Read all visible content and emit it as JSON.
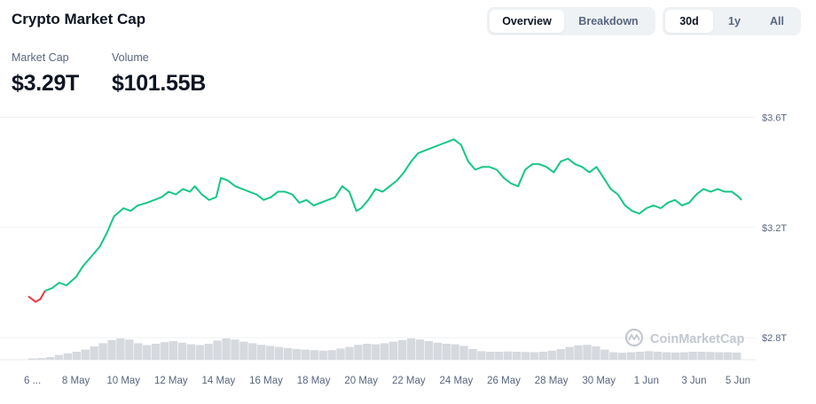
{
  "header": {
    "title": "Crypto Market Cap",
    "view_tabs": [
      {
        "label": "Overview",
        "active": true
      },
      {
        "label": "Breakdown",
        "active": false
      }
    ],
    "range_tabs": [
      {
        "label": "30d",
        "active": true
      },
      {
        "label": "1y",
        "active": false
      },
      {
        "label": "All",
        "active": false
      }
    ]
  },
  "stats": {
    "market_cap": {
      "label": "Market Cap",
      "value": "$3.29T"
    },
    "volume": {
      "label": "Volume",
      "value": "$101.55B"
    }
  },
  "watermark": "CoinMarketCap",
  "colors": {
    "up": "#16c784",
    "down": "#ea3943",
    "volume": "#d6d9de",
    "grid": "#eff2f5"
  },
  "chart_data": {
    "type": "line",
    "ylim": [
      2.72,
      3.64
    ],
    "ylabel_unit": "T",
    "y_ticks": [
      "$3.6T",
      "$3.2T",
      "$2.8T"
    ],
    "y_tick_values": [
      3.6,
      3.2,
      2.8
    ],
    "x_ticks": [
      "6 ...",
      "8 May",
      "10 May",
      "12 May",
      "14 May",
      "16 May",
      "18 May",
      "20 May",
      "22 May",
      "24 May",
      "26 May",
      "28 May",
      "30 May",
      "1 Jun",
      "3 Jun",
      "5 Jun"
    ],
    "x_tick_days": [
      0,
      2,
      4,
      6,
      8,
      10,
      12,
      14,
      16,
      18,
      20,
      22,
      24,
      26,
      28,
      30
    ],
    "grid": true,
    "series": [
      {
        "color_start": "#ea3943",
        "color": "#16c784",
        "points": [
          [
            0.0,
            2.95
          ],
          [
            0.3,
            2.93
          ],
          [
            0.5,
            2.94
          ],
          [
            0.7,
            2.97
          ],
          [
            1.0,
            2.98
          ],
          [
            1.3,
            3.0
          ],
          [
            1.6,
            2.99
          ],
          [
            2.0,
            3.02
          ],
          [
            2.3,
            3.06
          ],
          [
            2.6,
            3.09
          ],
          [
            3.0,
            3.13
          ],
          [
            3.3,
            3.18
          ],
          [
            3.6,
            3.24
          ],
          [
            4.0,
            3.27
          ],
          [
            4.3,
            3.26
          ],
          [
            4.6,
            3.28
          ],
          [
            5.0,
            3.29
          ],
          [
            5.3,
            3.3
          ],
          [
            5.6,
            3.31
          ],
          [
            5.9,
            3.33
          ],
          [
            6.2,
            3.32
          ],
          [
            6.5,
            3.34
          ],
          [
            6.8,
            3.33
          ],
          [
            7.0,
            3.35
          ],
          [
            7.3,
            3.32
          ],
          [
            7.6,
            3.3
          ],
          [
            7.9,
            3.31
          ],
          [
            8.1,
            3.38
          ],
          [
            8.4,
            3.37
          ],
          [
            8.7,
            3.35
          ],
          [
            9.0,
            3.34
          ],
          [
            9.3,
            3.33
          ],
          [
            9.6,
            3.32
          ],
          [
            9.9,
            3.3
          ],
          [
            10.2,
            3.31
          ],
          [
            10.5,
            3.33
          ],
          [
            10.8,
            3.33
          ],
          [
            11.1,
            3.32
          ],
          [
            11.4,
            3.29
          ],
          [
            11.7,
            3.3
          ],
          [
            12.0,
            3.28
          ],
          [
            12.3,
            3.29
          ],
          [
            12.6,
            3.3
          ],
          [
            12.9,
            3.31
          ],
          [
            13.2,
            3.35
          ],
          [
            13.5,
            3.33
          ],
          [
            13.8,
            3.26
          ],
          [
            14.0,
            3.27
          ],
          [
            14.3,
            3.3
          ],
          [
            14.6,
            3.34
          ],
          [
            14.9,
            3.33
          ],
          [
            15.2,
            3.35
          ],
          [
            15.5,
            3.37
          ],
          [
            15.8,
            3.4
          ],
          [
            16.1,
            3.44
          ],
          [
            16.4,
            3.47
          ],
          [
            16.7,
            3.48
          ],
          [
            17.0,
            3.49
          ],
          [
            17.3,
            3.5
          ],
          [
            17.6,
            3.51
          ],
          [
            17.9,
            3.52
          ],
          [
            18.2,
            3.5
          ],
          [
            18.5,
            3.44
          ],
          [
            18.8,
            3.41
          ],
          [
            19.1,
            3.42
          ],
          [
            19.4,
            3.42
          ],
          [
            19.7,
            3.41
          ],
          [
            20.0,
            3.38
          ],
          [
            20.3,
            3.36
          ],
          [
            20.6,
            3.35
          ],
          [
            20.9,
            3.41
          ],
          [
            21.2,
            3.43
          ],
          [
            21.5,
            3.43
          ],
          [
            21.8,
            3.42
          ],
          [
            22.1,
            3.4
          ],
          [
            22.4,
            3.44
          ],
          [
            22.7,
            3.45
          ],
          [
            23.0,
            3.43
          ],
          [
            23.3,
            3.42
          ],
          [
            23.6,
            3.4
          ],
          [
            23.9,
            3.42
          ],
          [
            24.2,
            3.38
          ],
          [
            24.5,
            3.34
          ],
          [
            24.8,
            3.32
          ],
          [
            25.1,
            3.28
          ],
          [
            25.4,
            3.26
          ],
          [
            25.7,
            3.25
          ],
          [
            26.0,
            3.27
          ],
          [
            26.3,
            3.28
          ],
          [
            26.6,
            3.27
          ],
          [
            26.9,
            3.29
          ],
          [
            27.2,
            3.3
          ],
          [
            27.5,
            3.28
          ],
          [
            27.8,
            3.29
          ],
          [
            28.1,
            3.32
          ],
          [
            28.4,
            3.34
          ],
          [
            28.7,
            3.33
          ],
          [
            29.0,
            3.34
          ],
          [
            29.3,
            3.33
          ],
          [
            29.6,
            3.33
          ],
          [
            29.9,
            3.31
          ],
          [
            30.0,
            3.3
          ]
        ]
      }
    ],
    "volume": [
      0.05,
      0.06,
      0.1,
      0.18,
      0.24,
      0.3,
      0.38,
      0.5,
      0.62,
      0.74,
      0.8,
      0.76,
      0.62,
      0.55,
      0.6,
      0.66,
      0.7,
      0.64,
      0.58,
      0.55,
      0.6,
      0.72,
      0.8,
      0.76,
      0.68,
      0.62,
      0.56,
      0.52,
      0.48,
      0.44,
      0.4,
      0.38,
      0.36,
      0.34,
      0.36,
      0.42,
      0.48,
      0.56,
      0.6,
      0.58,
      0.62,
      0.68,
      0.74,
      0.8,
      0.76,
      0.7,
      0.64,
      0.6,
      0.58,
      0.52,
      0.4,
      0.32,
      0.3,
      0.3,
      0.31,
      0.3,
      0.29,
      0.28,
      0.3,
      0.34,
      0.4,
      0.48,
      0.54,
      0.56,
      0.5,
      0.38,
      0.28,
      0.26,
      0.28,
      0.3,
      0.32,
      0.3,
      0.28,
      0.27,
      0.28,
      0.3,
      0.3,
      0.29,
      0.28,
      0.28,
      0.27
    ]
  }
}
